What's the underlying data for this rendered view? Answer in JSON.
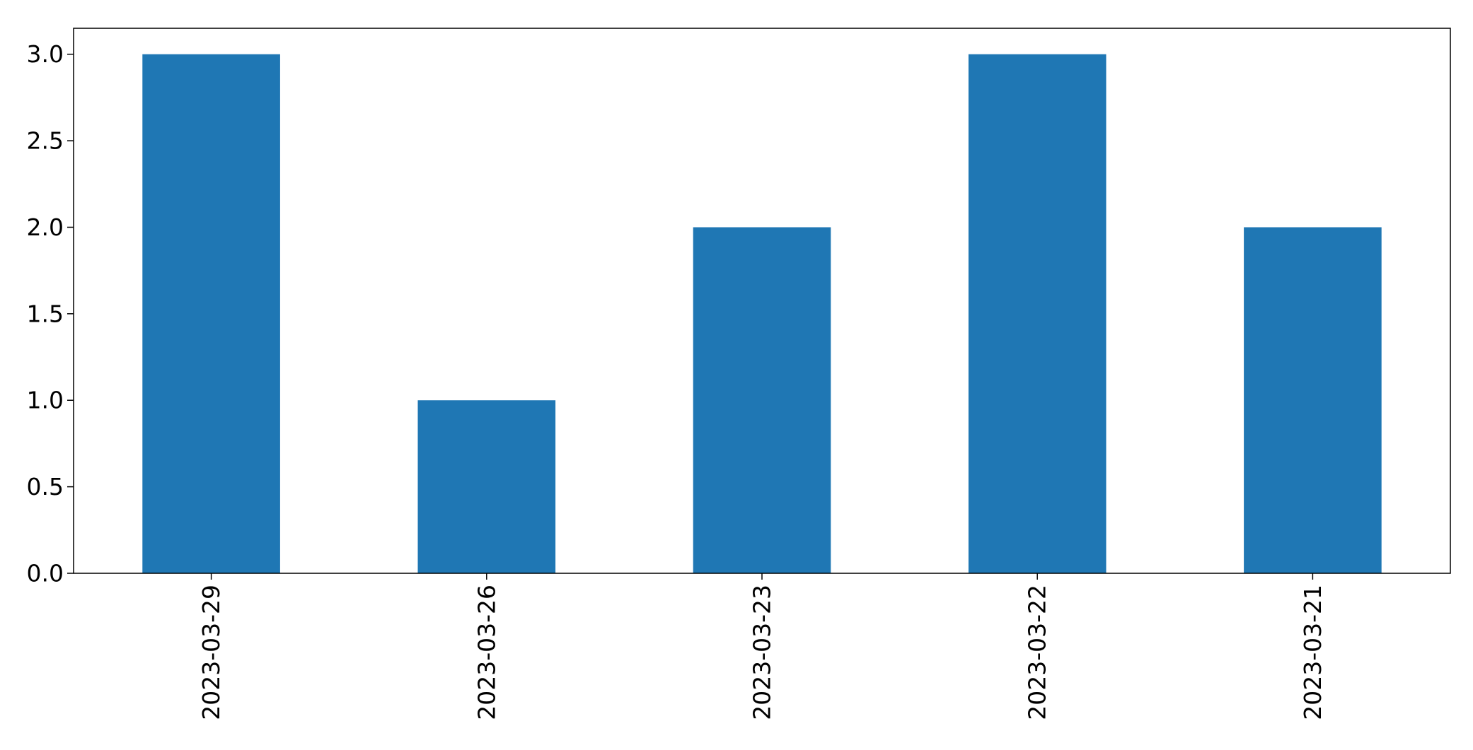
{
  "chart_data": {
    "type": "bar",
    "title": "",
    "xlabel": "",
    "ylabel": "",
    "categories": [
      "2023-03-29",
      "2023-03-26",
      "2023-03-23",
      "2023-03-22",
      "2023-03-21"
    ],
    "values": [
      3,
      1,
      2,
      3,
      2
    ],
    "ylim": [
      0,
      3.15
    ],
    "yticks": [
      0.0,
      0.5,
      1.0,
      1.5,
      2.0,
      2.5,
      3.0
    ],
    "ytick_labels": [
      "0.0",
      "0.5",
      "1.0",
      "1.5",
      "2.0",
      "2.5",
      "3.0"
    ],
    "bar_color": "#1f77b4",
    "grid": false,
    "legend": "none",
    "xtick_rotation": "vertical"
  }
}
